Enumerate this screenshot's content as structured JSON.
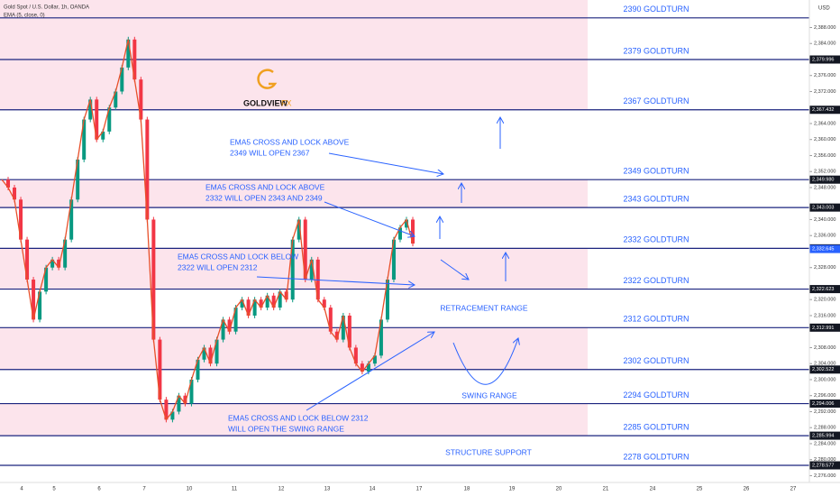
{
  "header": {
    "symbol": "Gold Spot / U.S. Dollar, 1h, OANDA",
    "currency": "USD",
    "logo": "GOLDVIEW",
    "logo_suffix": "FX"
  },
  "chart_data": {
    "type": "line",
    "series": [
      {
        "name": "EMA (5, close, 0)",
        "color": "#e8502a",
        "values": [
          2350,
          2348,
          2345,
          2335,
          2325,
          2315,
          2322,
          2328,
          2330,
          2328,
          2335,
          2345,
          2355,
          2365,
          2370,
          2360,
          2362,
          2368,
          2372,
          2378,
          2385,
          2375,
          2365,
          2340,
          2310,
          2295,
          2290,
          2292,
          2296,
          2294,
          2300,
          2305,
          2308,
          2304,
          2310,
          2315,
          2312,
          2318,
          2320,
          2316,
          2320,
          2318,
          2321,
          2318,
          2322,
          2320,
          2335,
          2340,
          2325,
          2330,
          2320,
          2318,
          2312,
          2310,
          2316,
          2308,
          2304,
          2302,
          2304,
          2306,
          2315,
          2325,
          2335,
          2338,
          2340,
          2334
        ]
      }
    ],
    "up_color": "#089981",
    "down_color": "#f23645",
    "ylim": [
      2274.3,
      2394.87
    ],
    "yticks": [
      {
        "value": 2276,
        "label": "2,276.000"
      },
      {
        "value": 2280,
        "label": "2,280.000"
      },
      {
        "value": 2284,
        "label": "2,284.000"
      },
      {
        "value": 2288,
        "label": "2,288.000"
      },
      {
        "value": 2292,
        "label": "2,292.000"
      },
      {
        "value": 2296,
        "label": "2,296.000"
      },
      {
        "value": 2300,
        "label": "2,300.000"
      },
      {
        "value": 2304,
        "label": "2,304.000"
      },
      {
        "value": 2308,
        "label": "2,308.000"
      },
      {
        "value": 2316,
        "label": "2,316.000"
      },
      {
        "value": 2320,
        "label": "2,320.000"
      },
      {
        "value": 2328,
        "label": "2,328.000"
      },
      {
        "value": 2336,
        "label": "2,336.000"
      },
      {
        "value": 2340,
        "label": "2,340.000"
      },
      {
        "value": 2348,
        "label": "2,348.000"
      },
      {
        "value": 2352,
        "label": "2,352.000"
      },
      {
        "value": 2356,
        "label": "2,356.000"
      },
      {
        "value": 2360,
        "label": "2,360.000"
      },
      {
        "value": 2364,
        "label": "2,364.000"
      },
      {
        "value": 2372,
        "label": "2,372.000"
      },
      {
        "value": 2376,
        "label": "2,376.000"
      },
      {
        "value": 2384,
        "label": "2,384.000"
      },
      {
        "value": 2388,
        "label": "2,388.000"
      }
    ],
    "xlabels": [
      "4",
      "5",
      "6",
      "7",
      "10",
      "11",
      "12",
      "13",
      "14",
      "17",
      "18",
      "19",
      "20",
      "21",
      "24",
      "25",
      "26",
      "27"
    ],
    "levels": [
      {
        "value": 2390.4,
        "label": "2390 GOLDTURN"
      },
      {
        "value": 2379.996,
        "label": "2379 GOLDTURN",
        "price_label": "2,379.996"
      },
      {
        "value": 2367.432,
        "label": "2367 GOLDTURN",
        "price_label": "2,367.432"
      },
      {
        "value": 2349.98,
        "label": "2349 GOLDTURN",
        "price_label": "2,349.980"
      },
      {
        "value": 2343.003,
        "label": "2343 GOLDTURN",
        "price_label": "2,343.003"
      },
      {
        "value": 2332.813,
        "label": "2332 GOLDTURN",
        "price_label": "2,332.813"
      },
      {
        "value": 2322.623,
        "label": "2322 GOLDTURN",
        "price_label": "2,322.623"
      },
      {
        "value": 2312.991,
        "label": "2312 GOLDTURN",
        "price_label": "2,312.991"
      },
      {
        "value": 2302.522,
        "label": "2302 GOLDTURN",
        "price_label": "2,302.522"
      },
      {
        "value": 2294.006,
        "label": "2294 GOLDTURN",
        "price_label": "2,294.006"
      },
      {
        "value": 2285.994,
        "label": "2285 GOLDTURN",
        "price_label": "2,285.994"
      },
      {
        "value": 2278.577,
        "label": "2278 GOLDTURN",
        "price_label": "2,278.577"
      }
    ],
    "last_price": 2332.645,
    "last_price_label": "2,332.645",
    "annotations": [
      [
        "EMA5 CROSS AND LOCK ABOVE",
        "2349 WILL OPEN 2367"
      ],
      [
        "EMA5 CROSS AND LOCK ABOVE",
        "2332 WILL OPEN 2343 AND 2349"
      ],
      [
        "EMA5 CROSS AND LOCK BELOW",
        "2322 WILL OPEN 2312"
      ],
      [
        "EMA5 CROSS AND LOCK BELOW 2312",
        "WILL OPEN THE SWING RANGE"
      ]
    ],
    "zones": [
      "RETRACEMENT RANGE",
      "SWING RANGE",
      "STRUCTURE SUPPORT"
    ]
  }
}
